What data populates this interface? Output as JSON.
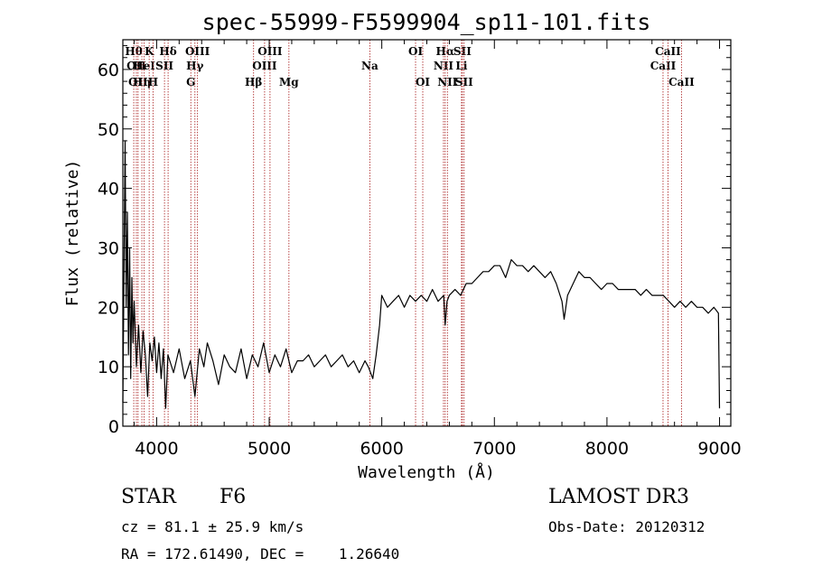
{
  "chart_data": {
    "type": "line",
    "title": "spec-55999-F5599904_sp11-101.fits",
    "xlabel": "Wavelength (Å)",
    "ylabel": "Flux (relative)",
    "xlim": [
      3700,
      9100
    ],
    "ylim": [
      0,
      65
    ],
    "xticks": [
      4000,
      5000,
      6000,
      7000,
      8000,
      9000
    ],
    "yticks": [
      0,
      10,
      20,
      30,
      40,
      50,
      60
    ],
    "series": [
      {
        "name": "flux",
        "x": [
          3700,
          3710,
          3720,
          3730,
          3740,
          3750,
          3760,
          3770,
          3780,
          3790,
          3800,
          3820,
          3840,
          3860,
          3880,
          3900,
          3920,
          3940,
          3960,
          3980,
          4000,
          4020,
          4040,
          4060,
          4080,
          4100,
          4150,
          4200,
          4250,
          4300,
          4340,
          4380,
          4420,
          4450,
          4500,
          4550,
          4600,
          4650,
          4700,
          4750,
          4800,
          4850,
          4900,
          4950,
          5000,
          5050,
          5100,
          5150,
          5200,
          5250,
          5300,
          5350,
          5400,
          5450,
          5500,
          5550,
          5600,
          5650,
          5700,
          5750,
          5800,
          5850,
          5880,
          5900,
          5920,
          5950,
          5980,
          6000,
          6050,
          6100,
          6150,
          6200,
          6250,
          6300,
          6350,
          6400,
          6450,
          6500,
          6550,
          6563,
          6580,
          6600,
          6650,
          6700,
          6750,
          6800,
          6850,
          6900,
          6950,
          7000,
          7050,
          7100,
          7150,
          7200,
          7250,
          7300,
          7350,
          7400,
          7450,
          7500,
          7550,
          7600,
          7620,
          7650,
          7700,
          7750,
          7800,
          7850,
          7900,
          7950,
          8000,
          8050,
          8100,
          8150,
          8200,
          8250,
          8300,
          8350,
          8400,
          8450,
          8500,
          8550,
          8600,
          8650,
          8700,
          8750,
          8800,
          8850,
          8900,
          8950,
          8990,
          9000
        ],
        "values": [
          4,
          25,
          48,
          20,
          36,
          12,
          30,
          8,
          25,
          14,
          21,
          10,
          17,
          9,
          16,
          12,
          5,
          14,
          11,
          15,
          9,
          14,
          8,
          13,
          3,
          12,
          9,
          13,
          8,
          11,
          5,
          13,
          10,
          14,
          11,
          7,
          12,
          10,
          9,
          13,
          8,
          12,
          10,
          14,
          9,
          12,
          10,
          13,
          9,
          11,
          11,
          12,
          10,
          11,
          12,
          10,
          11,
          12,
          10,
          11,
          9,
          11,
          10,
          9,
          8,
          12,
          17,
          22,
          20,
          21,
          22,
          20,
          22,
          21,
          22,
          21,
          23,
          21,
          22,
          17,
          21,
          22,
          23,
          22,
          24,
          24,
          25,
          26,
          26,
          27,
          27,
          25,
          28,
          27,
          27,
          26,
          27,
          26,
          25,
          26,
          24,
          21,
          18,
          22,
          24,
          26,
          25,
          25,
          24,
          23,
          24,
          24,
          23,
          23,
          23,
          23,
          22,
          23,
          22,
          22,
          22,
          21,
          20,
          21,
          20,
          21,
          20,
          20,
          19,
          20,
          19,
          3
        ]
      }
    ],
    "lines": [
      {
        "wl": 3797,
        "labels": [
          "Hθ"
        ],
        "row": 0
      },
      {
        "wl": 3820,
        "labels": [
          "OII"
        ],
        "row": 1
      },
      {
        "wl": 3835,
        "labels": [
          "OII"
        ],
        "row": 2
      },
      {
        "wl": 3869,
        "labels": [
          "Hη"
        ],
        "row": 2
      },
      {
        "wl": 3889,
        "labels": [
          "HeI"
        ],
        "row": 1
      },
      {
        "wl": 3934,
        "labels": [
          "K"
        ],
        "row": 0
      },
      {
        "wl": 3968,
        "labels": [
          "H"
        ],
        "row": 2
      },
      {
        "wl": 4070,
        "labels": [
          "SII"
        ],
        "row": 1
      },
      {
        "wl": 4102,
        "labels": [
          "Hδ"
        ],
        "row": 0
      },
      {
        "wl": 4304,
        "labels": [
          "G"
        ],
        "row": 2
      },
      {
        "wl": 4340,
        "labels": [
          "Hγ"
        ],
        "row": 1
      },
      {
        "wl": 4363,
        "labels": [
          "OIII"
        ],
        "row": 0
      },
      {
        "wl": 4861,
        "labels": [
          "Hβ"
        ],
        "row": 2
      },
      {
        "wl": 4959,
        "labels": [
          "OIII"
        ],
        "row": 1
      },
      {
        "wl": 5007,
        "labels": [
          "OIII"
        ],
        "row": 0
      },
      {
        "wl": 5175,
        "labels": [
          "Mg"
        ],
        "row": 2
      },
      {
        "wl": 5894,
        "labels": [
          "Na"
        ],
        "row": 1
      },
      {
        "wl": 6300,
        "labels": [
          "OI"
        ],
        "row": 0
      },
      {
        "wl": 6364,
        "labels": [
          "OI"
        ],
        "row": 2
      },
      {
        "wl": 6548,
        "labels": [
          "NII"
        ],
        "row": 1
      },
      {
        "wl": 6563,
        "labels": [
          "Hα"
        ],
        "row": 0
      },
      {
        "wl": 6583,
        "labels": [
          "NII"
        ],
        "row": 2
      },
      {
        "wl": 6708,
        "labels": [
          "Li"
        ],
        "row": 1
      },
      {
        "wl": 6716,
        "labels": [
          "SII"
        ],
        "row": 0
      },
      {
        "wl": 6731,
        "labels": [
          "SII"
        ],
        "row": 2
      },
      {
        "wl": 8498,
        "labels": [
          "CaII"
        ],
        "row": 1
      },
      {
        "wl": 8542,
        "labels": [
          "CaII"
        ],
        "row": 0
      },
      {
        "wl": 8662,
        "labels": [
          "CaII"
        ],
        "row": 2
      }
    ]
  },
  "info": {
    "object_class": "STAR",
    "subclass": "F6",
    "survey": "LAMOST DR3",
    "cz": "cz = 81.1 ± 25.9 km/s",
    "obs_date": "Obs-Date: 20120312",
    "coords": "RA = 172.61490, DEC =    1.26640"
  }
}
